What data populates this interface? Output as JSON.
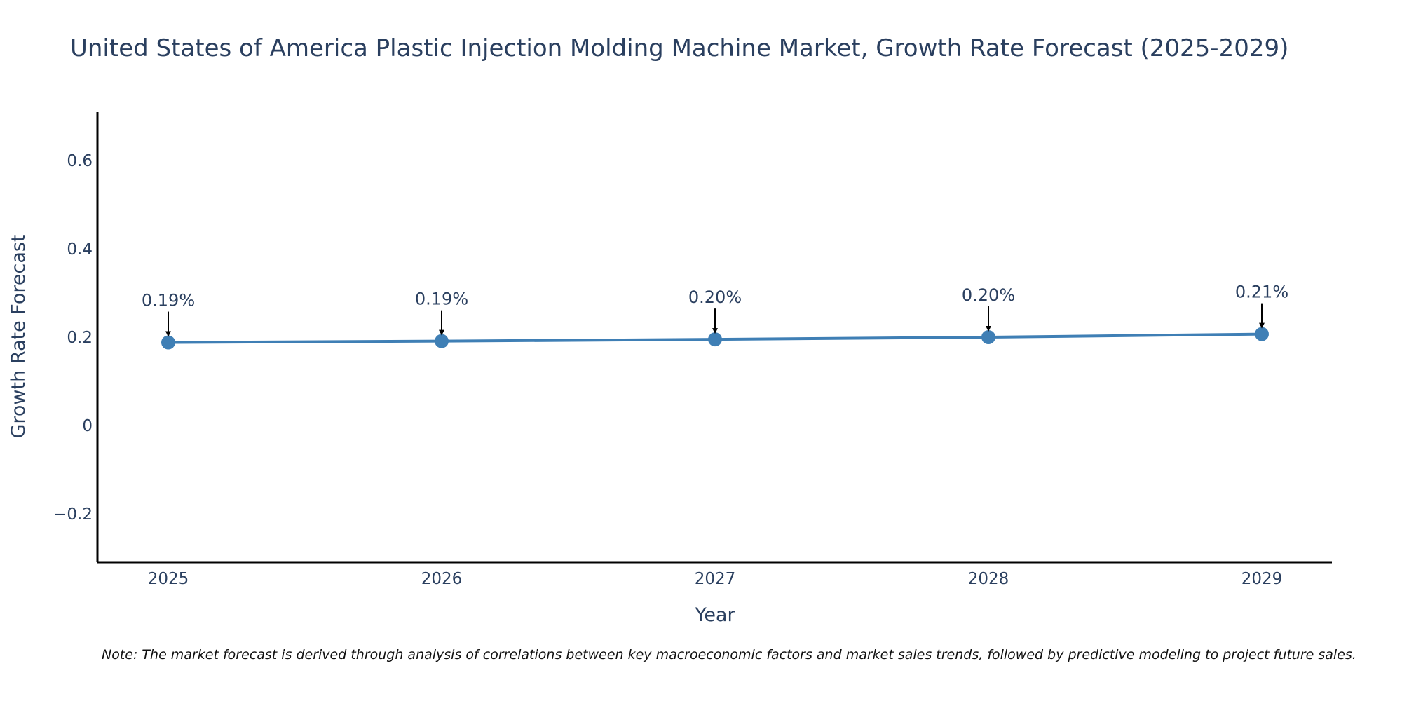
{
  "chart_data": {
    "type": "line",
    "title": "United States of America Plastic Injection Molding Machine Market, Growth Rate Forecast (2025-2029)",
    "xlabel": "Year",
    "ylabel": "Growth Rate Forecast",
    "categories": [
      "2025",
      "2026",
      "2027",
      "2028",
      "2029"
    ],
    "series": [
      {
        "name": "Growth Rate Forecast",
        "values": [
          0.188,
          0.191,
          0.195,
          0.2,
          0.207
        ],
        "labels": [
          "0.19%",
          "0.19%",
          "0.20%",
          "0.20%",
          "0.21%"
        ],
        "color": "#3f7fb5"
      }
    ],
    "yticks": [
      -0.2,
      0,
      0.2,
      0.4,
      0.6
    ],
    "ytick_labels": [
      "−0.2",
      "0",
      "0.2",
      "0.4",
      "0.6"
    ],
    "ylim": [
      -0.31,
      0.71
    ],
    "grid": false,
    "legend": "none",
    "note": "Note: The market forecast is derived through analysis of correlations between key macroeconomic factors and market sales trends, followed by predictive modeling to project future sales."
  }
}
